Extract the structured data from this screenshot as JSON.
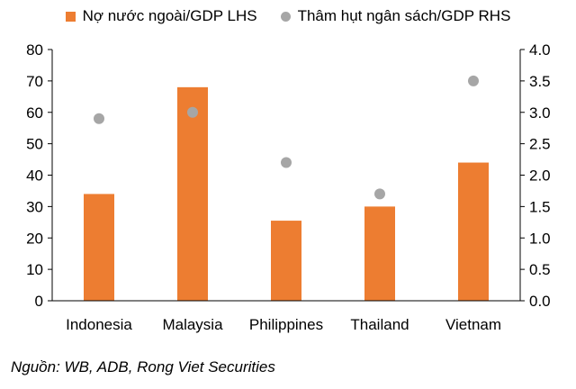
{
  "chart_data": {
    "type": "bar",
    "categories": [
      "Indonesia",
      "Malaysia",
      "Philippines",
      "Thailand",
      "Vietnam"
    ],
    "series": [
      {
        "name": "Nợ nước ngoài/GDP LHS",
        "type": "bar",
        "axis": "left",
        "color": "#ED7D31",
        "values": [
          34,
          68,
          25.5,
          30,
          44
        ]
      },
      {
        "name": "Thâm hụt ngân sách/GDP RHS",
        "type": "scatter",
        "axis": "right",
        "color": "#A6A6A6",
        "values": [
          2.9,
          3.0,
          2.2,
          1.7,
          3.5
        ]
      }
    ],
    "left_axis": {
      "ylim": [
        0,
        80
      ],
      "ticks": [
        0,
        10,
        20,
        30,
        40,
        50,
        60,
        70,
        80
      ],
      "tick_labels": [
        "0",
        "10",
        "20",
        "30",
        "40",
        "50",
        "60",
        "70",
        "80"
      ]
    },
    "right_axis": {
      "ylim": [
        0,
        4.0
      ],
      "ticks": [
        0,
        0.5,
        1.0,
        1.5,
        2.0,
        2.5,
        3.0,
        3.5,
        4.0
      ],
      "tick_labels": [
        "0.0",
        "0.5",
        "1.0",
        "1.5",
        "2.0",
        "2.5",
        "3.0",
        "3.5",
        "4.0"
      ]
    },
    "grid": false,
    "legend_position": "top"
  },
  "source_text": "Nguồn: WB, ADB, Rong Viet Securities"
}
